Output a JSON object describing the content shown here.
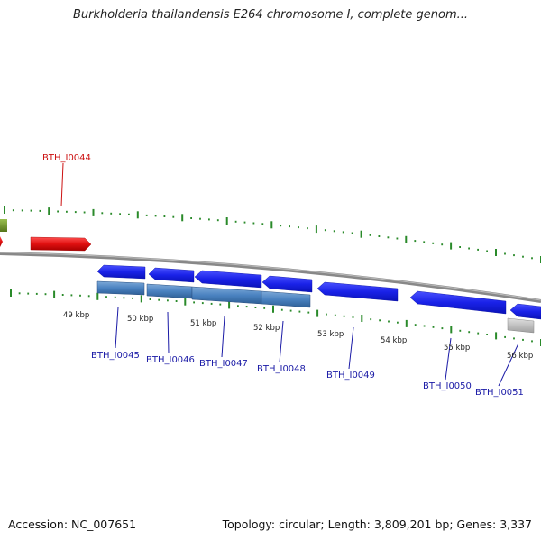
{
  "title": "Burkholderia thailandensis E264 chromosome I, complete genom...",
  "footer": {
    "accession": "Accession: NC_007651",
    "topology": "Topology: circular; Length: 3,809,201 bp; Genes: 3,337"
  },
  "colors": {
    "forward_gene": "#1a22e8",
    "reverse_gene": "#4a82c0",
    "highlight_gene": "#e01010",
    "other_gene": "#6b8e23",
    "pseudo_gene": "#b8b8b8",
    "backbone": "#888888",
    "tick": "#2a8a2a"
  },
  "kbp_labels": [
    "49 kbp",
    "50 kbp",
    "51 kbp",
    "52 kbp",
    "53 kbp",
    "54 kbp",
    "55 kbp",
    "56 kbp"
  ],
  "gene_labels": [
    "BTH_I0044",
    "BTH_I0045",
    "BTH_I0046",
    "BTH_I0047",
    "BTH_I0048",
    "BTH_I0049",
    "BTH_I0050",
    "BTH_I0051"
  ]
}
